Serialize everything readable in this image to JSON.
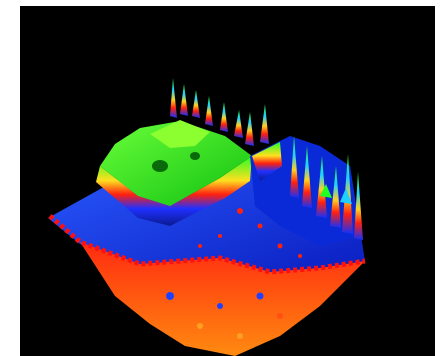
{
  "scene": {
    "subject": "3d-surface-render",
    "background_color": "#000000",
    "frame_color": "#ffffff",
    "palette": {
      "low": "#ff3a1a",
      "low_mid": "#ff7a10",
      "mid": "#1040ff",
      "mid_dark": "#0a2ad8",
      "high": "#22ff22",
      "high_dark": "#12b812",
      "peak": "#8bff30",
      "cyan": "#20d0ff",
      "yellow": "#ffe020",
      "red_band": "#ff1010"
    }
  }
}
